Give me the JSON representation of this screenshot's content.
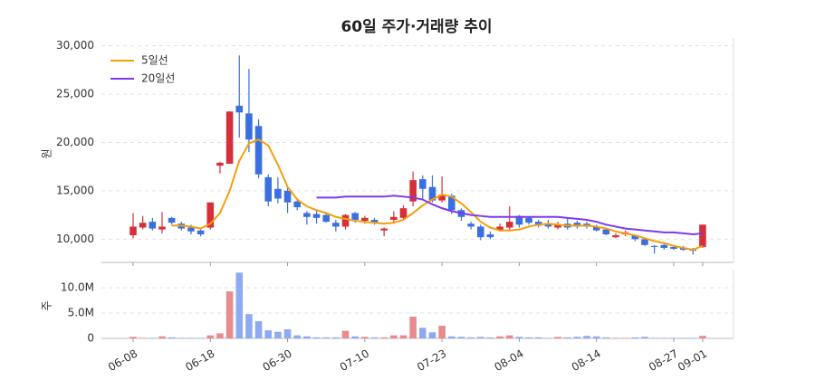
{
  "chart_data": [
    {
      "type": "candlestick",
      "title": "60일 주가·거래량 추이",
      "ylabel": "원",
      "ylim": [
        7600,
        30800
      ],
      "yticks": [
        {
          "value": 10000,
          "label": "10,000"
        },
        {
          "value": 15000,
          "label": "15,000"
        },
        {
          "value": 20000,
          "label": "20,000"
        },
        {
          "value": 25000,
          "label": "25,000"
        },
        {
          "value": 30000,
          "label": "30,000"
        }
      ],
      "grid": true,
      "legend": "upper left",
      "up_color": "#d62f3a",
      "down_color": "#3a6fe0",
      "open": [
        10400,
        11200,
        11800,
        11000,
        12200,
        11600,
        11200,
        10900,
        11200,
        17600,
        17800,
        23800,
        23000,
        21700,
        16400,
        15200,
        15000,
        13900,
        12700,
        12600,
        12500,
        11700,
        11300,
        12700,
        11900,
        12000,
        10900,
        12000,
        12200,
        13900,
        16200,
        15400,
        14000,
        14500,
        13000,
        11600,
        11300,
        10500,
        10900,
        11200,
        12400,
        12200,
        11800,
        11600,
        11200,
        11600,
        11700,
        11600,
        11300,
        11000,
        10200,
        10500,
        10400,
        10000,
        9300,
        9400,
        9200,
        9100,
        8900,
        9200
      ],
      "high": [
        12700,
        12400,
        12200,
        12800,
        12300,
        11800,
        11500,
        11000,
        13800,
        18000,
        23200,
        29000,
        27600,
        22400,
        16700,
        16400,
        15500,
        14200,
        12900,
        13000,
        12700,
        12000,
        12600,
        12800,
        12400,
        12200,
        11200,
        12900,
        13500,
        17000,
        16600,
        16600,
        16500,
        14700,
        13200,
        11800,
        11500,
        10800,
        11600,
        13400,
        12500,
        12400,
        12000,
        12000,
        11800,
        12200,
        11900,
        11800,
        11500,
        11100,
        10600,
        10900,
        10500,
        10100,
        9400,
        9600,
        9400,
        9300,
        9100,
        11500
      ],
      "low": [
        10100,
        11000,
        10900,
        10600,
        11500,
        10900,
        10500,
        10300,
        11000,
        16800,
        17800,
        20500,
        19000,
        16300,
        13400,
        13700,
        12700,
        13000,
        11500,
        11600,
        11700,
        10800,
        11000,
        11700,
        11600,
        11500,
        10300,
        11600,
        12000,
        13400,
        14000,
        13800,
        13800,
        12600,
        11900,
        11000,
        9900,
        10000,
        10800,
        11000,
        11200,
        11500,
        11200,
        11100,
        11000,
        11000,
        11100,
        11100,
        10800,
        10400,
        10100,
        10300,
        9800,
        9300,
        8500,
        8900,
        8900,
        8800,
        8400,
        9100
      ],
      "close": [
        11300,
        11700,
        11100,
        11300,
        11700,
        11100,
        10800,
        10500,
        13800,
        17900,
        23200,
        23100,
        20300,
        16700,
        13900,
        14200,
        13800,
        13300,
        12300,
        12200,
        11800,
        11300,
        12500,
        12000,
        12200,
        11700,
        11100,
        12300,
        13200,
        16100,
        15200,
        14000,
        14600,
        13000,
        12300,
        11300,
        10200,
        10200,
        11300,
        11800,
        11500,
        11700,
        11400,
        11300,
        11500,
        11200,
        11300,
        11300,
        10900,
        10500,
        10400,
        10700,
        10000,
        9400,
        9200,
        9100,
        9000,
        8900,
        8800,
        11500
      ],
      "series": [
        {
          "name": "5일선",
          "color": "#f59e0b",
          "values": [
            null,
            null,
            null,
            null,
            11400,
            11400,
            11300,
            11100,
            11600,
            12700,
            15000,
            18100,
            19900,
            20300,
            19700,
            17700,
            15400,
            14100,
            13400,
            13000,
            12700,
            12300,
            12100,
            11900,
            11800,
            11700,
            11600,
            11700,
            12000,
            12700,
            13500,
            14100,
            14600,
            14400,
            13700,
            12800,
            11800,
            11200,
            10900,
            10900,
            11000,
            11300,
            11500,
            11600,
            11500,
            11400,
            11400,
            11400,
            11300,
            11100,
            10800,
            10600,
            10400,
            10100,
            9800,
            9600,
            9300,
            9100,
            8900,
            9300
          ]
        },
        {
          "name": "20일선",
          "color": "#7c3aed",
          "values": [
            null,
            null,
            null,
            null,
            null,
            null,
            null,
            null,
            null,
            null,
            null,
            null,
            null,
            null,
            null,
            null,
            null,
            null,
            null,
            14300,
            14300,
            14300,
            14400,
            14400,
            14400,
            14400,
            14400,
            14500,
            14400,
            14300,
            14100,
            13600,
            13200,
            12900,
            12700,
            12500,
            12400,
            12300,
            12300,
            12300,
            12300,
            12300,
            12300,
            12300,
            12300,
            12200,
            12100,
            12000,
            11800,
            11500,
            11300,
            11100,
            11000,
            10900,
            10800,
            10700,
            10700,
            10600,
            10500,
            10600
          ]
        }
      ]
    },
    {
      "type": "bar",
      "ylabel": "주",
      "ylim": [
        0,
        13600000
      ],
      "yticks": [
        0,
        {
          "value": 5000000,
          "label": "5.0M"
        },
        {
          "value": 10000000,
          "label": "10.0M"
        }
      ],
      "grid": true,
      "up_color": "#e88b8f",
      "down_color": "#8eaaf0",
      "categories": [
        "06-08",
        null,
        null,
        null,
        null,
        null,
        null,
        null,
        "06-18",
        null,
        null,
        null,
        null,
        null,
        null,
        null,
        "06-30",
        null,
        null,
        null,
        null,
        null,
        null,
        null,
        "07-10",
        null,
        null,
        null,
        null,
        null,
        null,
        null,
        "07-23",
        null,
        null,
        null,
        null,
        null,
        null,
        null,
        "08-04",
        null,
        null,
        null,
        null,
        null,
        null,
        null,
        "08-14",
        null,
        null,
        null,
        null,
        null,
        null,
        null,
        "08-27",
        null,
        null,
        "09-01"
      ],
      "values": [
        300000,
        100000,
        100000,
        400000,
        200000,
        100000,
        100000,
        100000,
        600000,
        1000000,
        9300000,
        13000000,
        4800000,
        3400000,
        1600000,
        1300000,
        1800000,
        600000,
        400000,
        200000,
        200000,
        200000,
        1500000,
        400000,
        300000,
        200000,
        200000,
        600000,
        600000,
        4300000,
        2100000,
        1200000,
        2500000,
        400000,
        300000,
        200000,
        300000,
        200000,
        400000,
        600000,
        300000,
        200000,
        200000,
        100000,
        300000,
        200000,
        300000,
        500000,
        400000,
        200000,
        100000,
        100000,
        200000,
        300000,
        100000,
        100000,
        100000,
        100000,
        100000,
        500000
      ]
    }
  ]
}
